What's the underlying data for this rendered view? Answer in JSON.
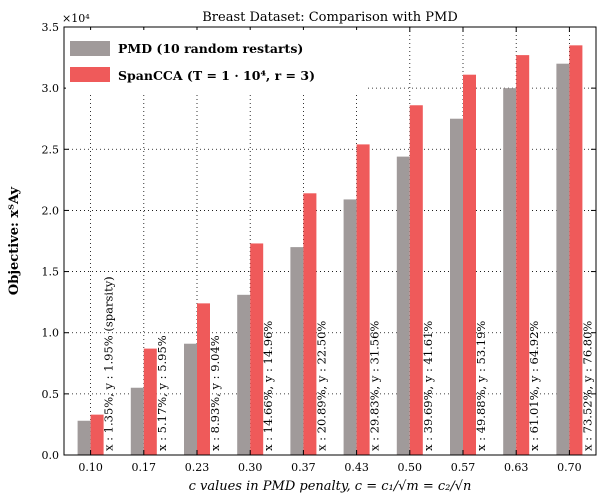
{
  "chart_data": {
    "type": "bar",
    "title": "Breast Dataset: Comparison with PMD",
    "xlabel": "c values in PMD penalty, c = c₁/√m = c₂/√n",
    "ylabel": "Objective: xᵀAy",
    "y_multiplier": "×10⁴",
    "categories": [
      "0.10",
      "0.17",
      "0.23",
      "0.30",
      "0.37",
      "0.43",
      "0.50",
      "0.57",
      "0.63",
      "0.70"
    ],
    "ylim": [
      0.0,
      3.5
    ],
    "yticks": [
      "0.0",
      "0.5",
      "1.0",
      "1.5",
      "2.0",
      "2.5",
      "3.0",
      "3.5"
    ],
    "grid": true,
    "legend_position": "top-left",
    "series": [
      {
        "name": "PMD (10 random restarts)",
        "color": "#a09a9a",
        "values": [
          0.28,
          0.55,
          0.91,
          1.31,
          1.7,
          2.09,
          2.44,
          2.75,
          3.0,
          3.2
        ]
      },
      {
        "name": "SpanCCA (T = 1 · 10⁴, r = 3)",
        "color": "#ef5a5a",
        "values": [
          0.33,
          0.87,
          1.24,
          1.73,
          2.14,
          2.54,
          2.86,
          3.11,
          3.27,
          3.35
        ]
      }
    ],
    "annotations": [
      "x : 1.35%, y : 1.95% (sparsity)",
      "x : 5.17%, y : 5.95%",
      "x : 8.93%, y : 9.04%",
      "x : 14.66%, y : 14.96%",
      "x : 20.89%, y : 22.50%",
      "x : 29.83%, y : 31.56%",
      "x : 39.69%, y : 41.61%",
      "x : 49.88%, y : 53.19%",
      "x : 61.01%, y : 64.92%",
      "x : 73.52%, y : 76.80%"
    ]
  }
}
